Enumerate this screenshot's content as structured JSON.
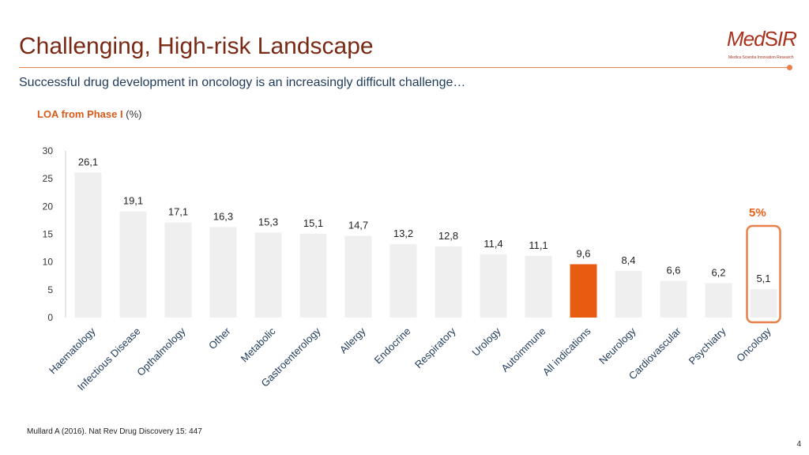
{
  "title": "Challenging, High-risk Landscape",
  "subtitle": "Successful drug development in oncology is an increasingly difficult challenge…",
  "logo": {
    "text": "MedSIR",
    "tagline": "Medica Scientia Innovation Research",
    "color": "#a8321e"
  },
  "footnote": "Mullard A (2016). Nat Rev Drug Discovery 15: 447",
  "page_number": "4",
  "colors": {
    "bar": "#efefef",
    "highlight": "#e85c12",
    "accent": "#e8804a",
    "title": "#7a2a14"
  },
  "chart_data": {
    "type": "bar",
    "ylabel": "LOA from Phase I",
    "ylabel_unit": "(%)",
    "ylim": [
      0,
      30
    ],
    "yticks": [
      0,
      5,
      10,
      15,
      20,
      25,
      30
    ],
    "grid": false,
    "highlight_category": "All indications",
    "callout_category": "Oncology",
    "callout_text": "5%",
    "categories": [
      "Haematology",
      "Infectious Disease",
      "Opthalmology",
      "Other",
      "Metabolic",
      "Gastroenterology",
      "Allergy",
      "Endocrine",
      "Respiratory",
      "Urology",
      "Autoimmune",
      "All indications",
      "Neurology",
      "Cardiovascular",
      "Psychiatry",
      "Oncology"
    ],
    "values": [
      26.1,
      19.1,
      17.1,
      16.3,
      15.3,
      15.1,
      14.7,
      13.2,
      12.8,
      11.4,
      11.1,
      9.6,
      8.4,
      6.6,
      6.2,
      5.1
    ],
    "value_labels": [
      "26,1",
      "19,1",
      "17,1",
      "16,3",
      "15,3",
      "15,1",
      "14,7",
      "13,2",
      "12,8",
      "11,4",
      "11,1",
      "9,6",
      "8,4",
      "6,6",
      "6,2",
      "5,1"
    ]
  }
}
